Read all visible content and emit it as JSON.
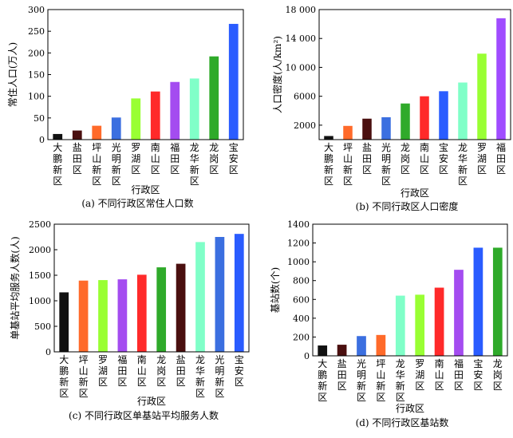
{
  "colors": {
    "black": "#111111",
    "dark_brown": "#4a0f0f",
    "orange": "#ff6a2a",
    "blue": "#3b6fe0",
    "lime": "#99ff33",
    "red": "#ff2a2a",
    "violet": "#a44cf0",
    "aqua": "#80ffc8",
    "green": "#2faa2a",
    "bright_blue": "#2a5cff",
    "bright_violet": "#a04cff"
  },
  "chart_data": [
    {
      "type": "bar",
      "caption": "(a) 不同行政区常住人口数",
      "xlabel": "行政区",
      "ylabel": "常住人口(万人)",
      "ylim": [
        0,
        300
      ],
      "yticks": [
        "0",
        "50",
        "100",
        "150",
        "200",
        "250",
        "300"
      ],
      "categories": [
        "大鹏新区",
        "盐田区",
        "坪山新区",
        "光明新区",
        "罗湖区",
        "南山区",
        "福田区",
        "龙华新区",
        "龙岗区",
        "宝安区"
      ],
      "values": [
        13,
        21,
        32,
        51,
        95,
        111,
        133,
        141,
        192,
        267
      ],
      "bar_colors": [
        "#111111",
        "#4a0f0f",
        "#ff6a2a",
        "#3b6fe0",
        "#99ff33",
        "#ff2a2a",
        "#a44cf0",
        "#80ffc8",
        "#2faa2a",
        "#2a5cff"
      ]
    },
    {
      "type": "bar",
      "caption": "(b) 不同行政区人口密度",
      "xlabel": "行政区",
      "ylabel": "人口密度(人/km²)",
      "ylim": [
        0,
        18000
      ],
      "yticks": [
        "2000",
        "6000",
        "10 000",
        "14 000",
        "18 000"
      ],
      "ytick_values": [
        2000,
        6000,
        10000,
        14000,
        18000
      ],
      "categories": [
        "大鹏新区",
        "坪山新区",
        "盐田区",
        "光明新区",
        "龙岗区",
        "南山区",
        "宝安区",
        "龙华新区",
        "罗湖区",
        "福田区"
      ],
      "values": [
        500,
        1900,
        2900,
        3100,
        5000,
        6000,
        6700,
        7900,
        11900,
        16800
      ],
      "bar_colors": [
        "#111111",
        "#ff6a2a",
        "#4a0f0f",
        "#3b6fe0",
        "#2faa2a",
        "#ff2a2a",
        "#2a5cff",
        "#80ffc8",
        "#99ff33",
        "#a04cff"
      ]
    },
    {
      "type": "bar",
      "caption": "(c) 不同行政区单基站平均服务人数",
      "xlabel": "行政区",
      "ylabel": "单基站平均服务人数(人)",
      "ylim": [
        0,
        2500
      ],
      "yticks": [
        "0",
        "500",
        "1000",
        "1500",
        "2000",
        "2500"
      ],
      "categories": [
        "大鹏新区",
        "坪山新区",
        "罗湖区",
        "福田区",
        "南山区",
        "龙岗区",
        "盐田区",
        "龙华新区",
        "光明新区",
        "宝安区"
      ],
      "values": [
        1165,
        1395,
        1405,
        1420,
        1510,
        1655,
        1725,
        2150,
        2250,
        2310
      ],
      "bar_colors": [
        "#111111",
        "#ff6a2a",
        "#99ff33",
        "#a44cf0",
        "#ff2a2a",
        "#2faa2a",
        "#4a0f0f",
        "#80ffc8",
        "#3b6fe0",
        "#2a5cff"
      ]
    },
    {
      "type": "bar",
      "caption": "(d) 不同行政区基站数",
      "xlabel": "行政区",
      "ylabel": "基站数(个)",
      "ylim": [
        0,
        1400
      ],
      "yticks": [
        "0",
        "200",
        "400",
        "600",
        "800",
        "1000",
        "1200",
        "1400"
      ],
      "categories": [
        "大鹏新区",
        "盐田区",
        "光明新区",
        "坪山新区",
        "龙华新区",
        "罗湖区",
        "南山区",
        "福田区",
        "宝安区",
        "龙岗区"
      ],
      "values": [
        110,
        118,
        210,
        222,
        640,
        650,
        725,
        915,
        1150,
        1150
      ],
      "bar_colors": [
        "#111111",
        "#4a0f0f",
        "#3b6fe0",
        "#ff6a2a",
        "#80ffc8",
        "#99ff33",
        "#ff2a2a",
        "#a44cf0",
        "#2a5cff",
        "#2faa2a"
      ]
    }
  ]
}
